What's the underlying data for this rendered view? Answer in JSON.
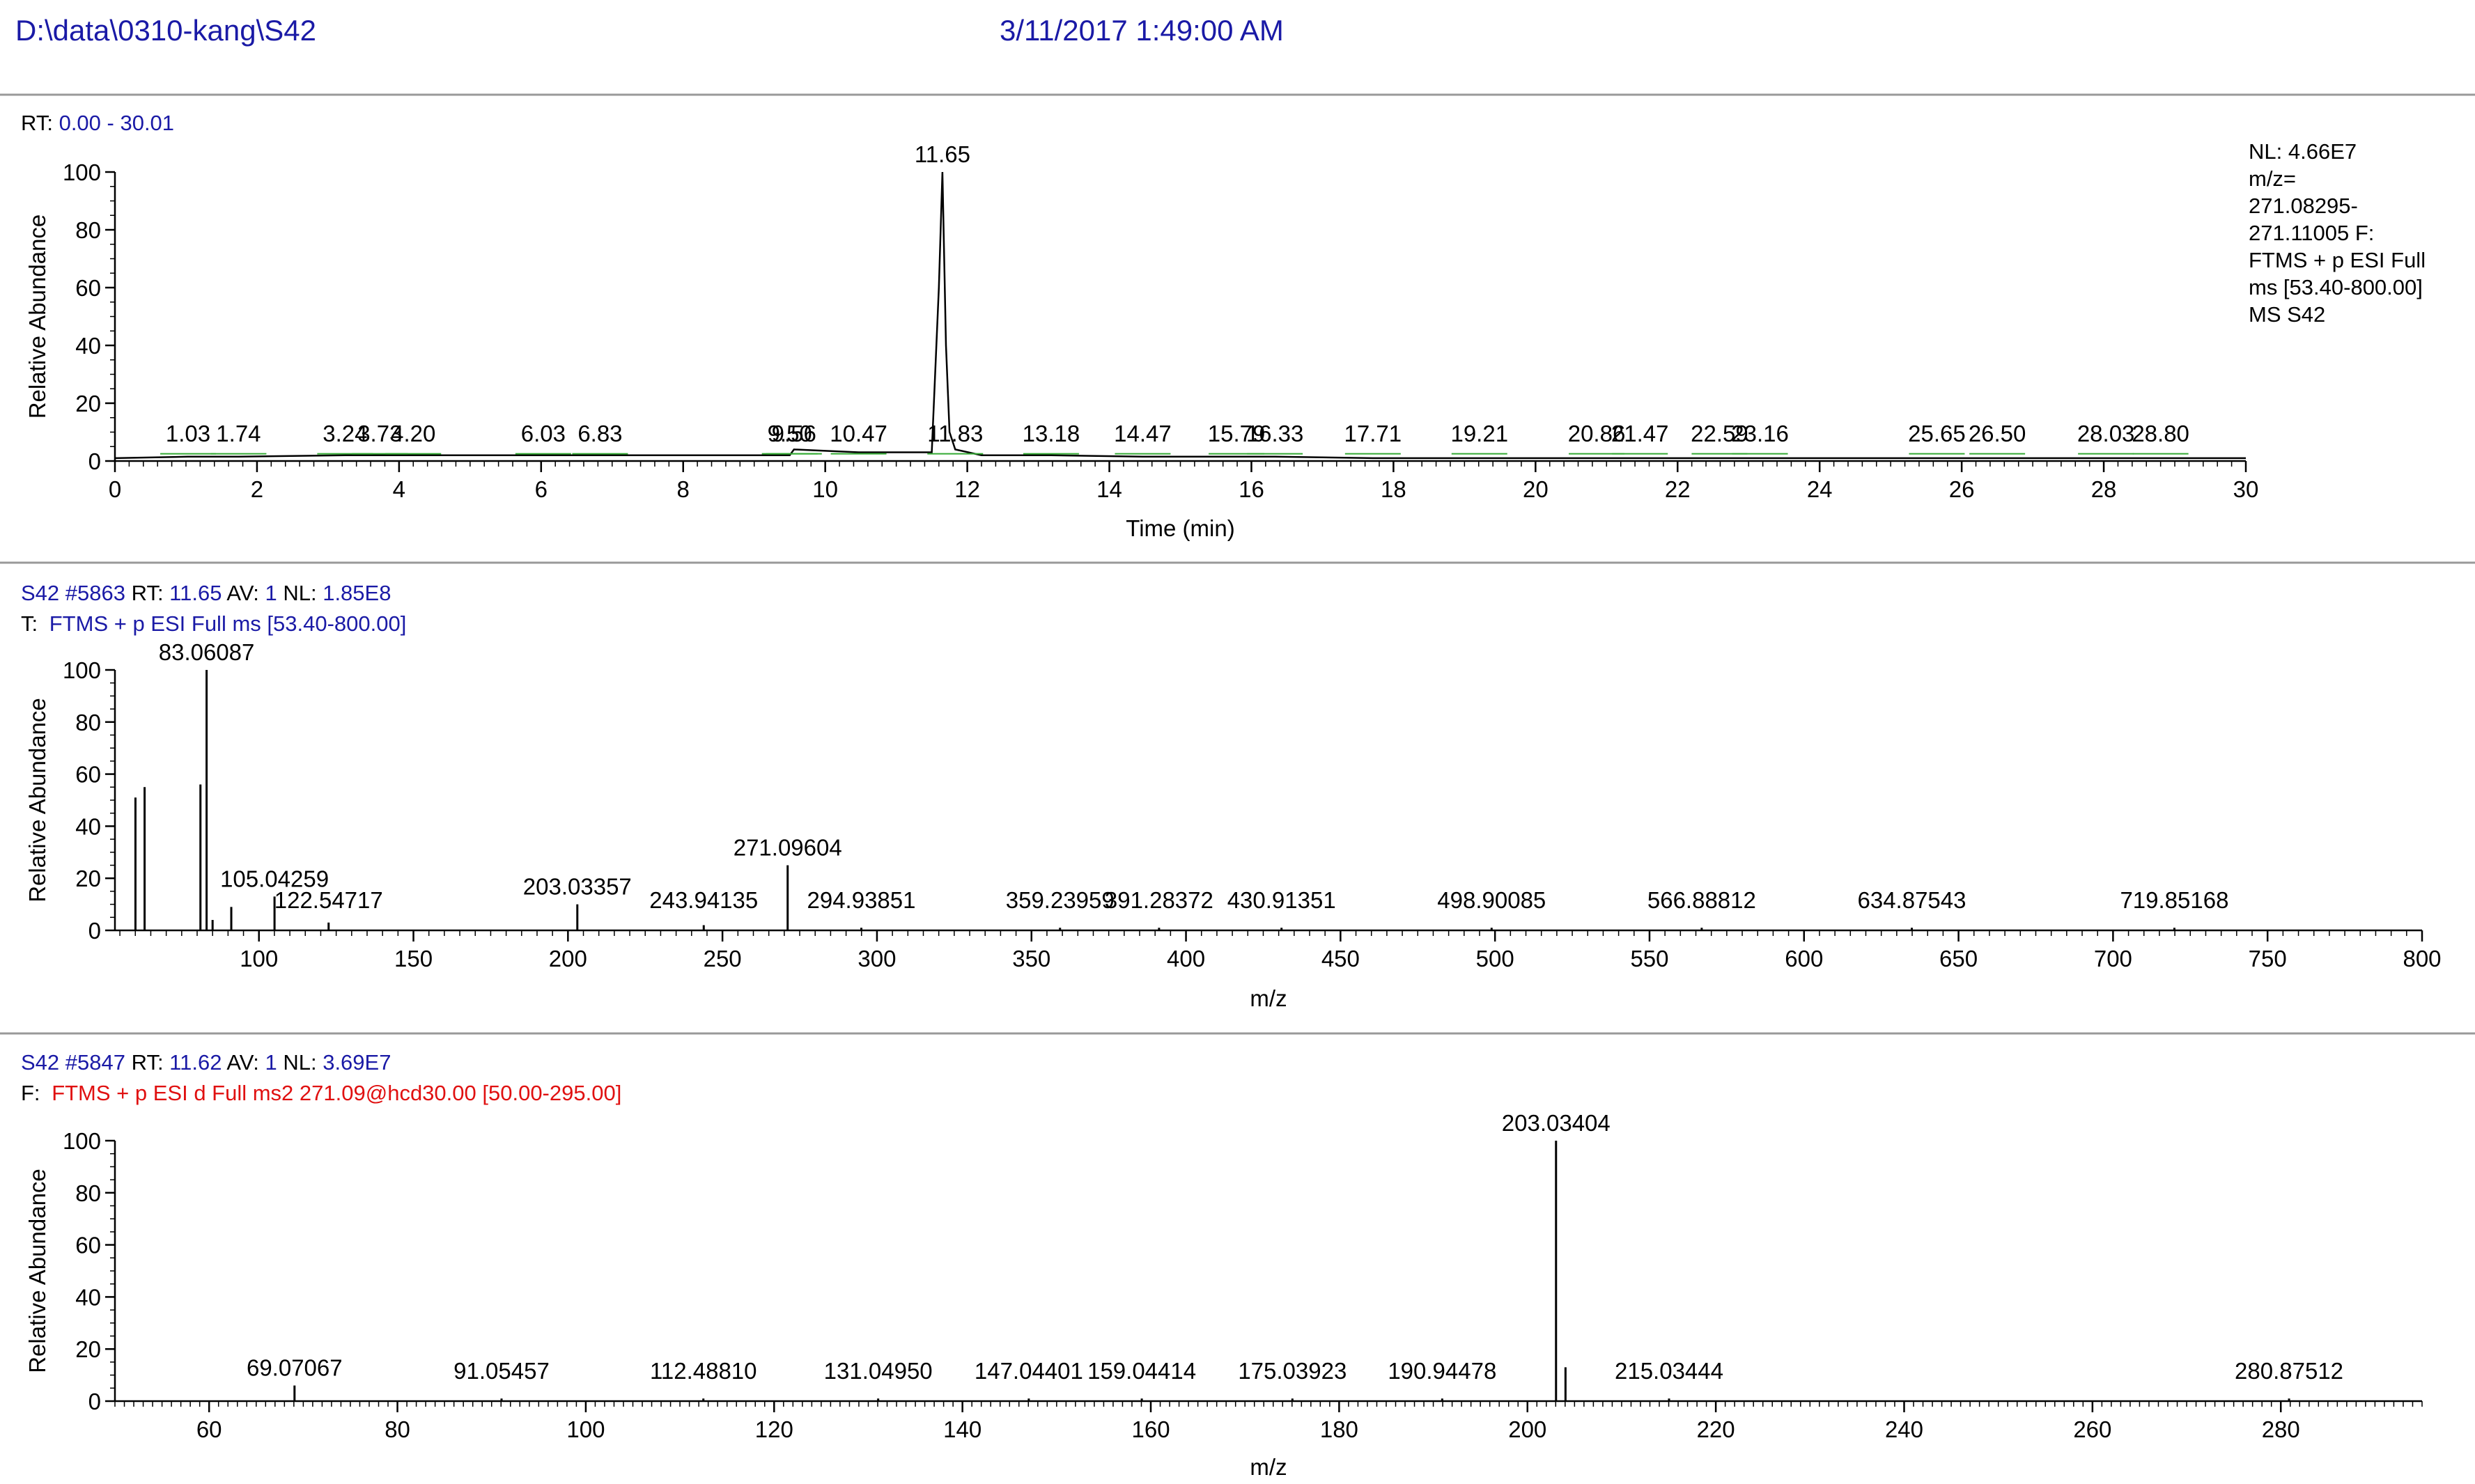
{
  "header": {
    "path": "D:\\data\\0310-kang\\S42",
    "datetime": "3/11/2017 1:49:00 AM"
  },
  "colors": {
    "header_blue": "#1a1aa6",
    "filter_red": "#e01010",
    "trace": "#000000",
    "integration_marks": "#33aa33",
    "separator": "#999999"
  },
  "panels": {
    "chrom": {
      "info_prefix": "RT:",
      "info_value": "0.00 - 30.01",
      "notes": [
        "NL: 4.66E7",
        "m/z=",
        "271.08295-",
        "271.11005 F:",
        "FTMS + p ESI Full",
        "ms [53.40-800.00]",
        "MS S42"
      ]
    },
    "ms1": {
      "line1": [
        {
          "t": "S42 ",
          "c": "blue"
        },
        {
          "t": "#5863",
          "c": "blue"
        },
        {
          "t": "  RT: ",
          "c": "black"
        },
        {
          "t": "11.65",
          "c": "blue"
        },
        {
          "t": "  AV: ",
          "c": "black"
        },
        {
          "t": "1",
          "c": "blue"
        },
        {
          "t": "  NL: ",
          "c": "black"
        },
        {
          "t": "1.85E8",
          "c": "blue"
        }
      ],
      "line2_prefix": "T:",
      "line2_value": "FTMS + p ESI Full ms [53.40-800.00]"
    },
    "ms2": {
      "line1": [
        {
          "t": "S42 ",
          "c": "blue"
        },
        {
          "t": "#5847",
          "c": "blue"
        },
        {
          "t": "  RT: ",
          "c": "black"
        },
        {
          "t": "11.62",
          "c": "blue"
        },
        {
          "t": "  AV: ",
          "c": "black"
        },
        {
          "t": "1",
          "c": "blue"
        },
        {
          "t": "  NL: ",
          "c": "black"
        },
        {
          "t": "3.69E7",
          "c": "blue"
        }
      ],
      "line2_prefix": "F:",
      "line2_value": "FTMS + p ESI d Full ms2 271.09@hcd30.00 [50.00-295.00]"
    }
  },
  "chart_data": [
    {
      "type": "line",
      "xlabel": "Time (min)",
      "ylabel": "Relative Abundance",
      "xlim": [
        0,
        30
      ],
      "ylim": [
        0,
        100
      ],
      "xticks": [
        0,
        2,
        4,
        6,
        8,
        10,
        12,
        14,
        16,
        18,
        20,
        22,
        24,
        26,
        28,
        30
      ],
      "yticks": [
        0,
        20,
        40,
        60,
        80,
        100
      ],
      "series": [
        {
          "x": [
            0,
            1.03,
            1.74,
            3.24,
            3.73,
            4.2,
            6.03,
            6.83,
            9.5,
            9.56,
            10.47,
            11.5,
            11.6,
            11.65,
            11.7,
            11.75,
            11.83,
            12.2,
            13.18,
            14.47,
            15.79,
            16.33,
            17.71,
            19.21,
            20.86,
            21.47,
            22.59,
            23.16,
            25.65,
            26.5,
            28.03,
            28.8,
            30
          ],
          "y": [
            1,
            1.5,
            1.5,
            2,
            2,
            2,
            2,
            2,
            2,
            4,
            3,
            3,
            60,
            100,
            40,
            10,
            4,
            2,
            2,
            1.5,
            1.5,
            1.5,
            1,
            1,
            1,
            1,
            1,
            1,
            1,
            1,
            1,
            1,
            1
          ]
        }
      ],
      "peak_labels": [
        {
          "x": 11.65,
          "label": "11.65"
        },
        {
          "x": 1.03,
          "label": "1.03"
        },
        {
          "x": 1.74,
          "label": "1.74"
        },
        {
          "x": 3.24,
          "label": "3.24"
        },
        {
          "x": 3.73,
          "label": "3.73"
        },
        {
          "x": 4.2,
          "label": "4.20"
        },
        {
          "x": 6.03,
          "label": "6.03"
        },
        {
          "x": 6.83,
          "label": "6.83"
        },
        {
          "x": 9.5,
          "label": "9.50"
        },
        {
          "x": 9.56,
          "label": "9.56"
        },
        {
          "x": 10.47,
          "label": "10.47"
        },
        {
          "x": 11.83,
          "label": "11.83"
        },
        {
          "x": 13.18,
          "label": "13.18"
        },
        {
          "x": 14.47,
          "label": "14.47"
        },
        {
          "x": 15.79,
          "label": "15.79"
        },
        {
          "x": 16.33,
          "label": "16.33"
        },
        {
          "x": 17.71,
          "label": "17.71"
        },
        {
          "x": 19.21,
          "label": "19.21"
        },
        {
          "x": 20.86,
          "label": "20.86"
        },
        {
          "x": 21.47,
          "label": "21.47"
        },
        {
          "x": 22.59,
          "label": "22.59"
        },
        {
          "x": 23.16,
          "label": "23.16"
        },
        {
          "x": 25.65,
          "label": "25.65"
        },
        {
          "x": 26.5,
          "label": "26.50"
        },
        {
          "x": 28.03,
          "label": "28.03"
        },
        {
          "x": 28.8,
          "label": "28.80"
        }
      ]
    },
    {
      "type": "bar",
      "xlabel": "m/z",
      "ylabel": "Relative Abundance",
      "xlim": [
        53.4,
        800
      ],
      "ylim": [
        0,
        100
      ],
      "xticks": [
        100,
        150,
        200,
        250,
        300,
        350,
        400,
        450,
        500,
        550,
        600,
        650,
        700,
        750,
        800
      ],
      "yticks": [
        0,
        20,
        40,
        60,
        80,
        100
      ],
      "peaks": [
        {
          "x": 60.04,
          "y": 51
        },
        {
          "x": 63.0,
          "y": 55
        },
        {
          "x": 81.07,
          "y": 56
        },
        {
          "x": 83.06087,
          "y": 100,
          "label": "83.06087"
        },
        {
          "x": 85.0,
          "y": 4
        },
        {
          "x": 91.05,
          "y": 9
        },
        {
          "x": 105.04259,
          "y": 13,
          "label": "105.04259"
        },
        {
          "x": 122.54717,
          "y": 3,
          "label": "122.54717"
        },
        {
          "x": 203.03357,
          "y": 10,
          "label": "203.03357"
        },
        {
          "x": 243.94135,
          "y": 2,
          "label": "243.94135"
        },
        {
          "x": 271.09604,
          "y": 25,
          "label": "271.09604"
        },
        {
          "x": 294.93851,
          "y": 1,
          "label": "294.93851"
        },
        {
          "x": 359.23959,
          "y": 1,
          "label": "359.23959"
        },
        {
          "x": 391.28372,
          "y": 1,
          "label": "391.28372"
        },
        {
          "x": 430.91351,
          "y": 1,
          "label": "430.91351"
        },
        {
          "x": 498.90085,
          "y": 1,
          "label": "498.90085"
        },
        {
          "x": 566.88812,
          "y": 1,
          "label": "566.88812"
        },
        {
          "x": 634.87543,
          "y": 1,
          "label": "634.87543"
        },
        {
          "x": 719.85168,
          "y": 1,
          "label": "719.85168"
        }
      ]
    },
    {
      "type": "bar",
      "xlabel": "m/z",
      "ylabel": "Relative Abundance",
      "xlim": [
        50,
        295
      ],
      "ylim": [
        0,
        100
      ],
      "xticks": [
        60,
        80,
        100,
        120,
        140,
        160,
        180,
        200,
        220,
        240,
        260,
        280
      ],
      "yticks": [
        0,
        20,
        40,
        60,
        80,
        100
      ],
      "peaks": [
        {
          "x": 69.07067,
          "y": 6,
          "label": "69.07067"
        },
        {
          "x": 91.05457,
          "y": 1,
          "label": "91.05457"
        },
        {
          "x": 112.4881,
          "y": 1,
          "label": "112.48810"
        },
        {
          "x": 131.0495,
          "y": 1,
          "label": "131.04950"
        },
        {
          "x": 147.04401,
          "y": 1,
          "label": "147.04401"
        },
        {
          "x": 159.04414,
          "y": 1,
          "label": "159.04414"
        },
        {
          "x": 175.03923,
          "y": 1,
          "label": "175.03923"
        },
        {
          "x": 190.94478,
          "y": 1,
          "label": "190.94478"
        },
        {
          "x": 203.03404,
          "y": 100,
          "label": "203.03404"
        },
        {
          "x": 204.04,
          "y": 13
        },
        {
          "x": 215.03444,
          "y": 1,
          "label": "215.03444"
        },
        {
          "x": 280.87512,
          "y": 1,
          "label": "280.87512"
        }
      ]
    }
  ]
}
